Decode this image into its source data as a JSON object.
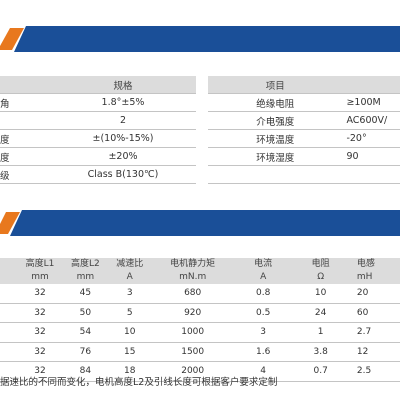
{
  "colors": {
    "banner_blue": "#1a4f98",
    "banner_orange": "#e8781e",
    "header_gray": "#dcdcdc"
  },
  "spec_left": {
    "header": [
      "",
      "规格"
    ],
    "rows": [
      [
        "角",
        "1.8°±5%"
      ],
      [
        "",
        "2"
      ],
      [
        "度",
        "±(10%-15%)"
      ],
      [
        "度",
        "±20%"
      ],
      [
        "级",
        "Class B(130℃)"
      ]
    ]
  },
  "spec_right": {
    "header": [
      "项目",
      ""
    ],
    "rows": [
      [
        "绝缘电阻",
        "≥100M"
      ],
      [
        "介电强度",
        "AC600V/"
      ],
      [
        "环境温度",
        "-20°"
      ],
      [
        "环境湿度",
        "90"
      ],
      [
        "",
        ""
      ]
    ]
  },
  "performance": {
    "header_top": [
      "",
      "高度L1",
      "高度L2",
      "减速比",
      "电机静力矩",
      "电流",
      "电阻",
      "电感"
    ],
    "header_unit": [
      "",
      "mm",
      "mm",
      "A",
      "mN.m",
      "A",
      "Ω",
      "mH"
    ],
    "rows": [
      [
        "",
        "32",
        "45",
        "3",
        "680",
        "0.8",
        "10",
        "20"
      ],
      [
        "",
        "32",
        "50",
        "5",
        "920",
        "0.5",
        "24",
        "60"
      ],
      [
        "",
        "32",
        "54",
        "10",
        "1000",
        "3",
        "1",
        "2.7"
      ],
      [
        "",
        "32",
        "76",
        "15",
        "1500",
        "1.6",
        "3.8",
        "12"
      ],
      [
        "",
        "32",
        "84",
        "18",
        "2000",
        "4",
        "0.7",
        "2.5"
      ]
    ]
  },
  "note": "据速比的不同而变化，电机高度L2及引线长度可根据客户要求定制"
}
